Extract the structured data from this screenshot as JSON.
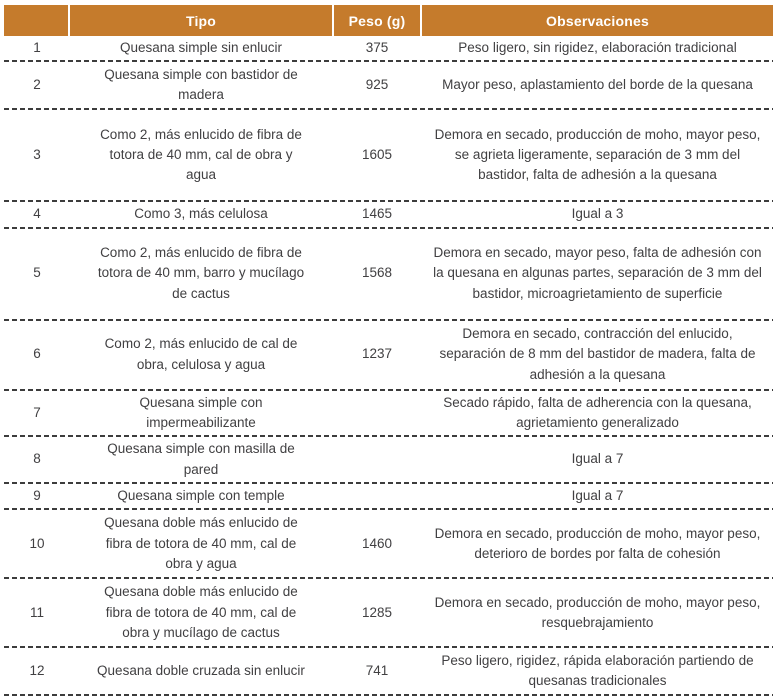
{
  "colors": {
    "header_bg": "#c57b2c",
    "header_text": "#ffffff",
    "body_text": "#414042",
    "divider": "#3c3c3c"
  },
  "table": {
    "headers": [
      "",
      "Tipo",
      "Peso (g)",
      "Observaciones"
    ],
    "rows": [
      {
        "num": "1",
        "tipo": "Quesana simple sin enlucir",
        "peso": "375",
        "obs": "Peso ligero, sin rigidez, elaboración tradicional"
      },
      {
        "num": "2",
        "tipo": "Quesana simple con bastidor de madera",
        "peso": "925",
        "obs": "Mayor peso, aplastamiento del borde de la quesana"
      },
      {
        "num": "3",
        "tipo": "Como 2, más enlucido de fibra de totora de 40 mm, cal de obra y agua",
        "peso": "1605",
        "obs": "Demora en secado, producción de moho, mayor peso, se agrieta ligeramente, separación de 3 mm del bastidor, falta de adhesión a la quesana"
      },
      {
        "num": "4",
        "tipo": "Como 3, más celulosa",
        "peso": "1465",
        "obs": "Igual a 3"
      },
      {
        "num": "5",
        "tipo": "Como 2, más enlucido de fibra de totora de 40 mm, barro y mucílago de cactus",
        "peso": "1568",
        "obs": "Demora en secado, mayor peso, falta de adhesión con la quesana en algunas partes, separación de 3 mm del bastidor, microagrietamiento de superficie"
      },
      {
        "num": "6",
        "tipo": "Como 2, más enlucido de cal de obra, celulosa y agua",
        "peso": "1237",
        "obs": "Demora en secado, contracción del enlucido, separación de 8 mm del bastidor de madera, falta de adhesión a la quesana"
      },
      {
        "num": "7",
        "tipo": "Quesana simple con impermeabilizante",
        "peso": "",
        "obs": "Secado rápido, falta de adherencia con la quesana, agrietamiento generalizado"
      },
      {
        "num": "8",
        "tipo": "Quesana simple con masilla de pared",
        "peso": "",
        "obs": "Igual a 7"
      },
      {
        "num": "9",
        "tipo": "Quesana simple con temple",
        "peso": "",
        "obs": "Igual a 7"
      },
      {
        "num": "10",
        "tipo": "Quesana doble más enlucido de fibra de totora de 40 mm, cal de obra y agua",
        "peso": "1460",
        "obs": "Demora en secado, producción de moho, mayor peso, deterioro de bordes por falta de cohesión"
      },
      {
        "num": "11",
        "tipo": "Quesana doble más enlucido de fibra de totora de 40 mm, cal de obra y mucílago de cactus",
        "peso": "1285",
        "obs": "Demora en secado, producción de moho, mayor peso, resquebrajamiento"
      },
      {
        "num": "12",
        "tipo": "Quesana doble cruzada sin enlucir",
        "peso": "741",
        "obs": "Peso ligero, rigidez, rápida elaboración partiendo de quesanas tradicionales"
      }
    ]
  }
}
